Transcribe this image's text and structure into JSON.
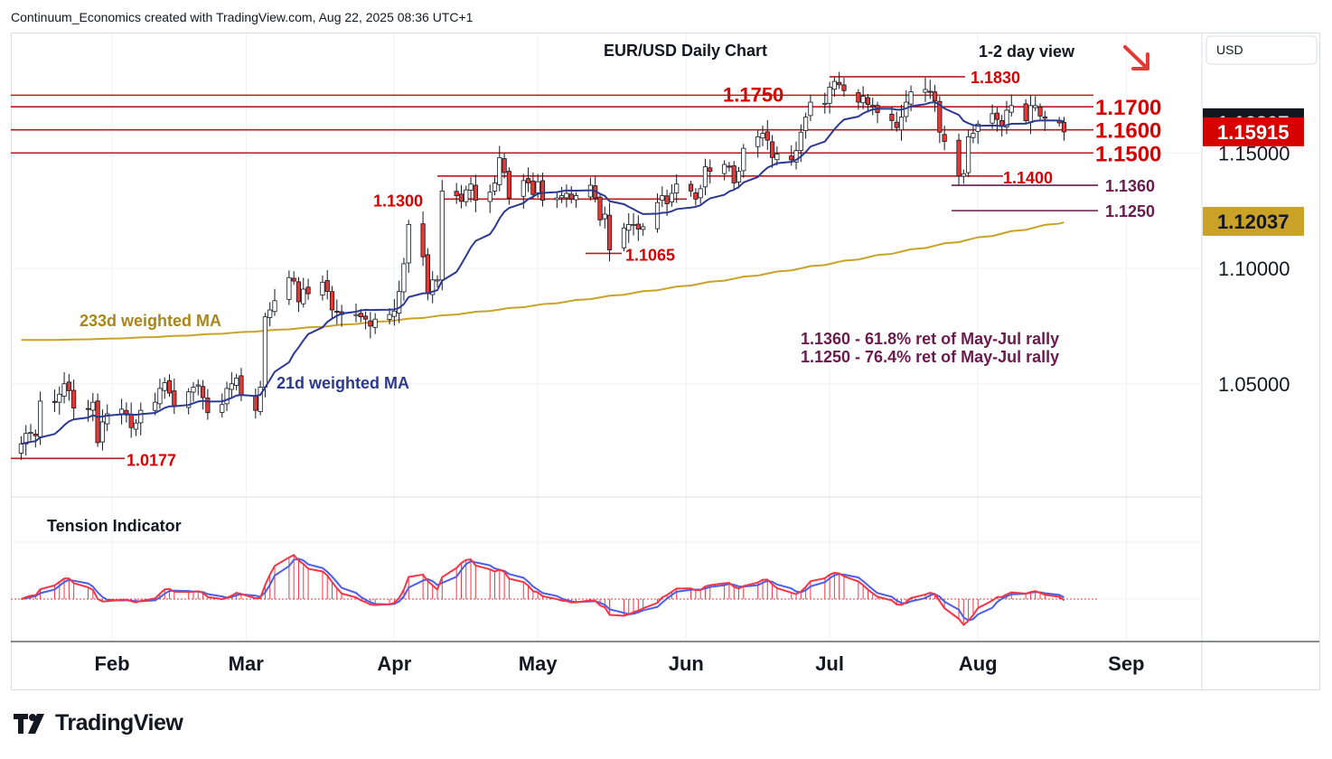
{
  "header": {
    "text": "Continuum_Economics created with TradingView.com, Aug 22, 2025 08:36 UTC+1"
  },
  "footer": {
    "brand": "TradingView"
  },
  "colors": {
    "up": "#ffffff",
    "down": "#e53935",
    "ma21": "#2b3990",
    "ma233": "#c9a227",
    "level_red": "#d50000",
    "level_purple": "#6a1b4d",
    "tension_red": "#f23645",
    "tension_blue": "#4a5ee8"
  },
  "chart_data": [
    {
      "type": "candlestick",
      "title": "EUR/USD Daily Chart",
      "subtitle": "1-2 day view",
      "currency_label": "USD",
      "y_ticks": [
        "1.05000",
        "1.10000",
        "1.15000"
      ],
      "ylim": [
        1.0,
        1.195
      ],
      "x_ticks": [
        "Feb",
        "Mar",
        "Apr",
        "May",
        "Jun",
        "Jul",
        "Aug",
        "Sep"
      ],
      "price_badges": [
        {
          "value": "1.16307",
          "style": "dark"
        },
        {
          "value": "1.15915",
          "style": "red"
        },
        {
          "value": "1.12037",
          "style": "gold"
        }
      ],
      "levels": [
        {
          "label": "1.1750",
          "value": 1.175,
          "color": "red"
        },
        {
          "label": "1.1700",
          "value": 1.17,
          "color": "red"
        },
        {
          "label": "1.1600",
          "value": 1.16,
          "color": "red"
        },
        {
          "label": "1.1500",
          "value": 1.15,
          "color": "red"
        },
        {
          "label": "1.1830",
          "value": 1.183,
          "color": "red"
        },
        {
          "label": "1.1400",
          "value": 1.14,
          "color": "red"
        },
        {
          "label": "1.1300",
          "value": 1.13,
          "color": "red"
        },
        {
          "label": "1.1065",
          "value": 1.1065,
          "color": "red"
        },
        {
          "label": "1.0177",
          "value": 1.0177,
          "color": "red"
        },
        {
          "label": "1.1360",
          "value": 1.136,
          "color": "purple"
        },
        {
          "label": "1.1250",
          "value": 1.125,
          "color": "purple"
        }
      ],
      "annotations": {
        "ma233_label": "233d weighted MA",
        "ma21_label": "21d weighted MA",
        "note1": "1.1360 - 61.8% ret of May-Jul rally",
        "note2": "1.1250 - 76.4% ret of May-Jul rally"
      },
      "series": [
        {
          "name": "EUR/USD",
          "start": "2025-01-13",
          "close": [
            1.024,
            1.0285,
            1.029,
            1.0275,
            1.0425,
            1.042,
            1.0455,
            1.05,
            1.047,
            1.0395,
            1.039,
            1.042,
            1.0245,
            1.0335,
            1.037,
            1.039,
            1.0365,
            1.031,
            1.033,
            1.0385,
            1.042,
            1.048,
            1.0505,
            1.046,
            1.0405,
            1.0465,
            1.0485,
            1.0495,
            1.044,
            1.0375,
            1.041,
            1.048,
            1.05,
            1.0525,
            1.045,
            1.0385,
            1.0485,
            1.079,
            1.082,
            1.086,
            1.096,
            1.0945,
            1.0855,
            1.091,
            1.089,
            1.094,
            1.09,
            1.082,
            1.081,
            1.08,
            1.08,
            1.079,
            1.078,
            1.075,
            1.078,
            1.08,
            1.0815,
            1.09,
            1.102,
            1.119,
            1.105,
            1.089,
            1.095,
            1.095,
            1.1335,
            1.1315,
            1.129,
            1.134,
            1.1365,
            1.1295,
            1.133,
            1.137,
            1.148,
            1.1415,
            1.1305,
            1.138,
            1.137,
            1.132,
            1.1375,
            1.1295,
            1.1305,
            1.1315,
            1.1325,
            1.13,
            1.1315,
            1.136,
            1.1305,
            1.121,
            1.1235,
            1.108,
            1.1175,
            1.119,
            1.119,
            1.117,
            1.118,
            1.1285,
            1.1315,
            1.128,
            1.1325,
            1.1365,
            1.1335,
            1.13,
            1.1345,
            1.144,
            1.142,
            1.145,
            1.144,
            1.137,
            1.142,
            1.152,
            1.157,
            1.1585,
            1.1555,
            1.148,
            1.1495,
            1.147,
            1.151,
            1.159,
            1.1655,
            1.172,
            1.1715,
            1.1785,
            1.181,
            1.1795,
            1.177,
            1.172,
            1.1745,
            1.171,
            1.17,
            1.1675,
            1.164,
            1.161,
            1.1655,
            1.172,
            1.1765,
            1.1775,
            1.1765,
            1.1725,
            1.159,
            1.155,
            1.14,
            1.141,
            1.157,
            1.1585,
            1.1625,
            1.167,
            1.1645,
            1.1615,
            1.1685,
            1.1705,
            1.164,
            1.1705,
            1.1705,
            1.166,
            1.165,
            1.163,
            1.1591
          ]
        }
      ]
    },
    {
      "type": "histogram+line",
      "title": "Tension Indicator",
      "x_ticks": [
        "Feb",
        "Mar",
        "Apr",
        "May",
        "Jun",
        "Jul",
        "Aug",
        "Sep"
      ]
    }
  ]
}
